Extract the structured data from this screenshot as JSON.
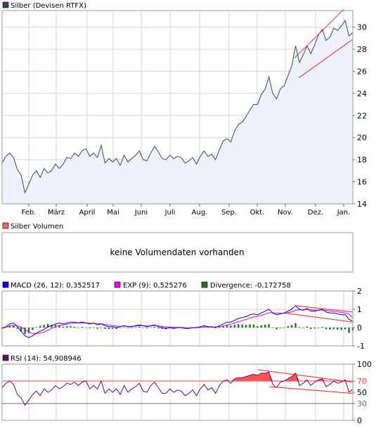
{
  "colors": {
    "price_line": "#3a4660",
    "price_fill": "#eef0fa",
    "channel": "#ff2020",
    "macd": "#0000ee",
    "exp": "#ee00ee",
    "divergence": "#1a7a1a",
    "rsi": "#6a0a6a",
    "rsi_70": "#ff4040",
    "rsi_30": "#6666aa",
    "grid": "#d4d4d4",
    "frame": "#999999"
  },
  "price": {
    "legend": "Silber (Devisen RTFX)",
    "no_volume_legend": "Silber Volumen",
    "no_volume_text": "keine Volumendaten vorhanden"
  },
  "macd": {
    "legend_macd": "MACD (26, 12): 0,352517",
    "legend_exp": "EXP (9): 0,525276",
    "legend_div": "Divergence: -0,172758"
  },
  "rsi": {
    "legend": "RSI (14): 54,908946"
  },
  "chart_data": [
    {
      "type": "line",
      "title": "Silber (Devisen RTFX)",
      "x_ticks": [
        "Feb.",
        "März",
        "April",
        "Mai",
        "Juni",
        "Juli",
        "Aug.",
        "Sep.",
        "Okt.",
        "Nov.",
        "Dez.",
        "Jan."
      ],
      "y_ticks": [
        14,
        16,
        18,
        20,
        22,
        24,
        26,
        28,
        30
      ],
      "ylim": [
        14,
        31.5
      ],
      "grid": true,
      "series": [
        {
          "values": [
            17.7,
            18.3,
            18.6,
            18.2,
            17.1,
            16.6,
            15.0,
            15.8,
            16.6,
            17.0,
            16.4,
            17.2,
            16.8,
            17.0,
            17.6,
            17.2,
            17.6,
            18.2,
            18.1,
            18.6,
            18.3,
            18.8,
            19.0,
            18.3,
            18.6,
            18.2,
            19.3,
            17.7,
            18.1,
            17.8,
            18.1,
            17.5,
            18.4,
            17.8,
            18.1,
            18.4,
            18.8,
            18.0,
            17.9,
            18.6,
            19.2,
            18.7,
            18.1,
            18.0,
            18.4,
            18.1,
            18.3,
            18.2,
            17.7,
            17.9,
            18.2,
            17.6,
            18.3,
            18.8,
            18.3,
            18.5,
            18.0,
            18.9,
            19.7,
            19.9,
            19.6,
            20.6,
            21.2,
            21.4,
            21.9,
            22.5,
            23.0,
            23.0,
            23.9,
            24.4,
            25.5,
            24.0,
            23.5,
            24.4,
            24.7,
            25.6,
            26.5,
            28.3,
            26.8,
            27.5,
            28.3,
            27.6,
            28.4,
            29.3,
            29.8,
            28.8,
            29.1,
            29.9,
            29.7,
            30.1,
            30.6,
            29.2,
            29.5
          ],
          "x_range": [
            "Jan.",
            "Jan."
          ]
        }
      ],
      "annotations": [
        "trend channel (upper and lower lines) Nov. – Jan."
      ]
    },
    {
      "type": "line",
      "y_ticks": [
        -1,
        0,
        1,
        2
      ],
      "ylim": [
        -1,
        2
      ],
      "grid": true,
      "series": [
        {
          "name": "MACD (26, 12): 0,352517",
          "values": [
            -0.05,
            0.05,
            0.2,
            0.25,
            0.05,
            -0.2,
            -0.45,
            -0.55,
            -0.45,
            -0.3,
            -0.2,
            -0.1,
            0.05,
            0.1,
            0.2,
            0.25,
            0.2,
            0.25,
            0.3,
            0.3,
            0.25,
            0.3,
            0.25,
            0.2,
            0.25,
            0.15,
            0.2,
            0.1,
            0.05,
            0.05,
            0.0,
            0.05,
            0.1,
            0.05,
            0.05,
            0.1,
            0.15,
            0.1,
            0.05,
            0.1,
            0.15,
            0.05,
            0.0,
            -0.05,
            0.0,
            -0.05,
            0.0,
            0.0,
            -0.05,
            -0.05,
            0.0,
            0.0,
            0.05,
            0.1,
            0.05,
            0.05,
            0.0,
            0.1,
            0.2,
            0.3,
            0.3,
            0.4,
            0.5,
            0.55,
            0.6,
            0.7,
            0.75,
            0.7,
            0.8,
            0.9,
            1.0,
            0.8,
            0.7,
            0.75,
            0.8,
            0.9,
            1.0,
            1.2,
            1.0,
            0.95,
            1.05,
            0.9,
            0.9,
            0.95,
            1.0,
            0.85,
            0.8,
            0.8,
            0.75,
            0.7,
            0.7,
            0.45,
            0.35
          ]
        },
        {
          "name": "EXP (9): 0,525276",
          "values": [
            0.0,
            0.02,
            0.08,
            0.12,
            0.1,
            0.02,
            -0.1,
            -0.25,
            -0.32,
            -0.32,
            -0.3,
            -0.25,
            -0.15,
            -0.05,
            0.05,
            0.12,
            0.15,
            0.18,
            0.22,
            0.25,
            0.25,
            0.26,
            0.25,
            0.24,
            0.24,
            0.21,
            0.21,
            0.17,
            0.13,
            0.11,
            0.08,
            0.07,
            0.08,
            0.07,
            0.07,
            0.08,
            0.1,
            0.1,
            0.09,
            0.09,
            0.11,
            0.1,
            0.07,
            0.04,
            0.03,
            0.01,
            0.01,
            0.01,
            -0.01,
            -0.02,
            -0.01,
            -0.01,
            0.01,
            0.04,
            0.04,
            0.04,
            0.03,
            0.05,
            0.09,
            0.15,
            0.19,
            0.25,
            0.32,
            0.39,
            0.45,
            0.52,
            0.58,
            0.62,
            0.67,
            0.74,
            0.81,
            0.81,
            0.79,
            0.78,
            0.79,
            0.82,
            0.86,
            0.95,
            0.97,
            0.97,
            0.99,
            0.97,
            0.95,
            0.95,
            0.96,
            0.94,
            0.91,
            0.89,
            0.86,
            0.83,
            0.8,
            0.74,
            0.53
          ]
        },
        {
          "name": "Divergence: -0,172758",
          "type": "bar",
          "values": [
            -0.05,
            0.03,
            0.12,
            0.13,
            -0.05,
            -0.22,
            -0.35,
            -0.3,
            -0.13,
            0.02,
            0.1,
            0.15,
            0.2,
            0.15,
            0.15,
            0.13,
            0.05,
            0.07,
            0.08,
            0.05,
            0.0,
            0.04,
            0.0,
            -0.04,
            0.01,
            -0.06,
            -0.01,
            -0.07,
            -0.08,
            -0.06,
            -0.08,
            -0.02,
            0.02,
            -0.02,
            -0.02,
            0.02,
            0.05,
            0.0,
            -0.04,
            0.01,
            0.04,
            -0.05,
            -0.07,
            -0.09,
            -0.03,
            -0.06,
            -0.01,
            -0.01,
            -0.04,
            -0.03,
            0.01,
            0.01,
            0.04,
            0.06,
            0.01,
            0.01,
            -0.03,
            0.05,
            0.11,
            0.15,
            0.11,
            0.15,
            0.18,
            0.16,
            0.15,
            0.18,
            0.17,
            0.08,
            0.13,
            0.16,
            0.19,
            -0.01,
            -0.09,
            -0.03,
            0.01,
            0.08,
            0.14,
            0.25,
            0.03,
            -0.02,
            0.06,
            -0.07,
            -0.05,
            0.0,
            0.04,
            -0.09,
            -0.11,
            -0.09,
            -0.11,
            -0.13,
            -0.1,
            -0.29,
            -0.17
          ]
        }
      ],
      "annotations": [
        "falling trend lines on MACD (Nov. – Jan.)"
      ]
    },
    {
      "type": "line",
      "y_ticks": [
        0,
        30,
        50,
        70,
        100
      ],
      "ylim": [
        0,
        100
      ],
      "reference_lines": [
        70,
        30
      ],
      "series": [
        {
          "name": "RSI (14): 54,908946",
          "values": [
            58,
            66,
            70,
            64,
            46,
            40,
            27,
            36,
            46,
            52,
            44,
            56,
            50,
            54,
            62,
            56,
            60,
            66,
            64,
            68,
            62,
            68,
            70,
            56,
            62,
            56,
            70,
            48,
            56,
            50,
            56,
            46,
            62,
            50,
            56,
            60,
            66,
            52,
            50,
            62,
            68,
            58,
            48,
            48,
            56,
            50,
            54,
            52,
            44,
            48,
            54,
            44,
            56,
            64,
            54,
            58,
            48,
            62,
            70,
            72,
            66,
            74,
            76,
            76,
            78,
            80,
            82,
            80,
            84,
            84,
            86,
            64,
            58,
            68,
            70,
            74,
            78,
            84,
            62,
            66,
            72,
            62,
            68,
            72,
            74,
            60,
            64,
            70,
            66,
            68,
            72,
            50,
            55
          ]
        }
      ],
      "annotations": [
        "shaded area where RSI exceeds 70",
        "falling trend lines on RSI (Okt. – Jan.)"
      ]
    }
  ]
}
